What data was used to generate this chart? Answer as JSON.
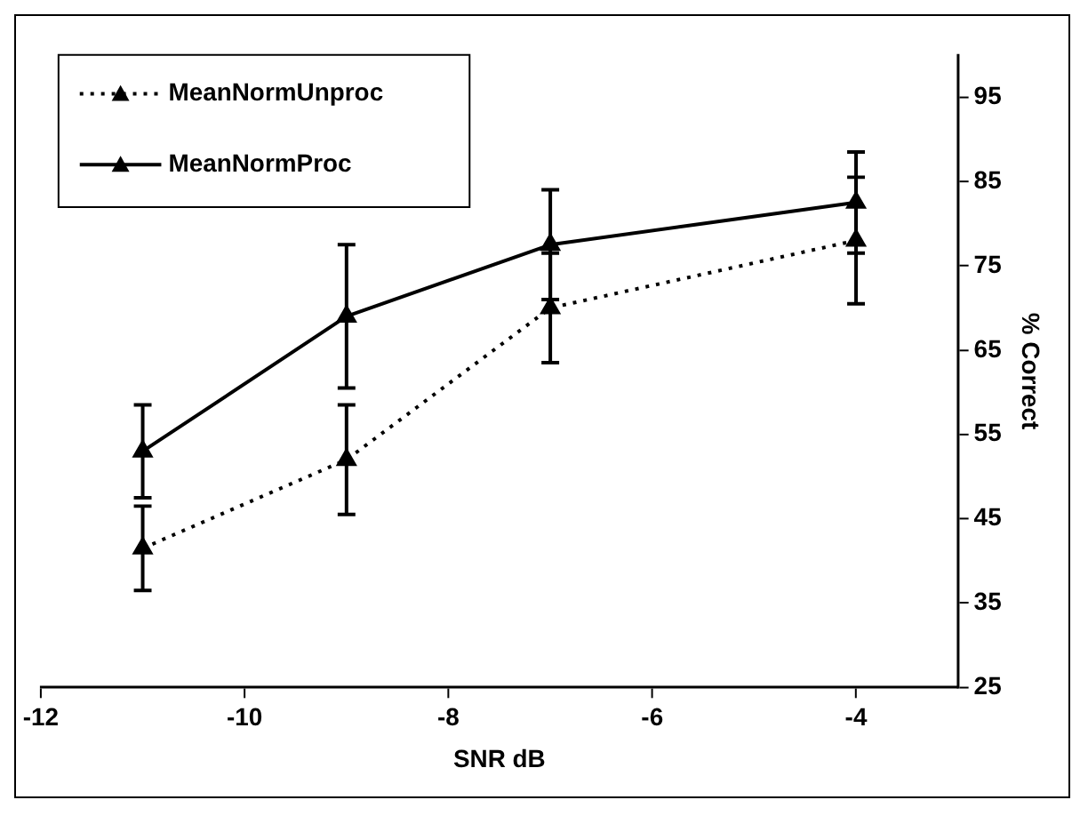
{
  "chart_data": {
    "type": "line",
    "xlabel": "SNR dB",
    "ylabel": "% Correct",
    "x": [
      -11,
      -9,
      -7,
      -4
    ],
    "xlim": [
      -12,
      -3
    ],
    "xticks": [
      -12,
      -10,
      -8,
      -6,
      -4
    ],
    "ylim": [
      25,
      100
    ],
    "yticks": [
      25,
      35,
      45,
      55,
      65,
      75,
      85,
      95
    ],
    "grid": false,
    "legend": "top left",
    "marker": "triangle",
    "series": [
      {
        "name": "MeanNormUnproc",
        "color": "#000000",
        "line_style": "dotted",
        "values": [
          41.5,
          52,
          70,
          78
        ],
        "errors": [
          5,
          6.5,
          6.5,
          7.5
        ]
      },
      {
        "name": "MeanNormProc",
        "color": "#000000",
        "line_style": "solid",
        "values": [
          53,
          69,
          77.5,
          82.5
        ],
        "errors": [
          5.5,
          8.5,
          6.5,
          6
        ]
      }
    ]
  }
}
